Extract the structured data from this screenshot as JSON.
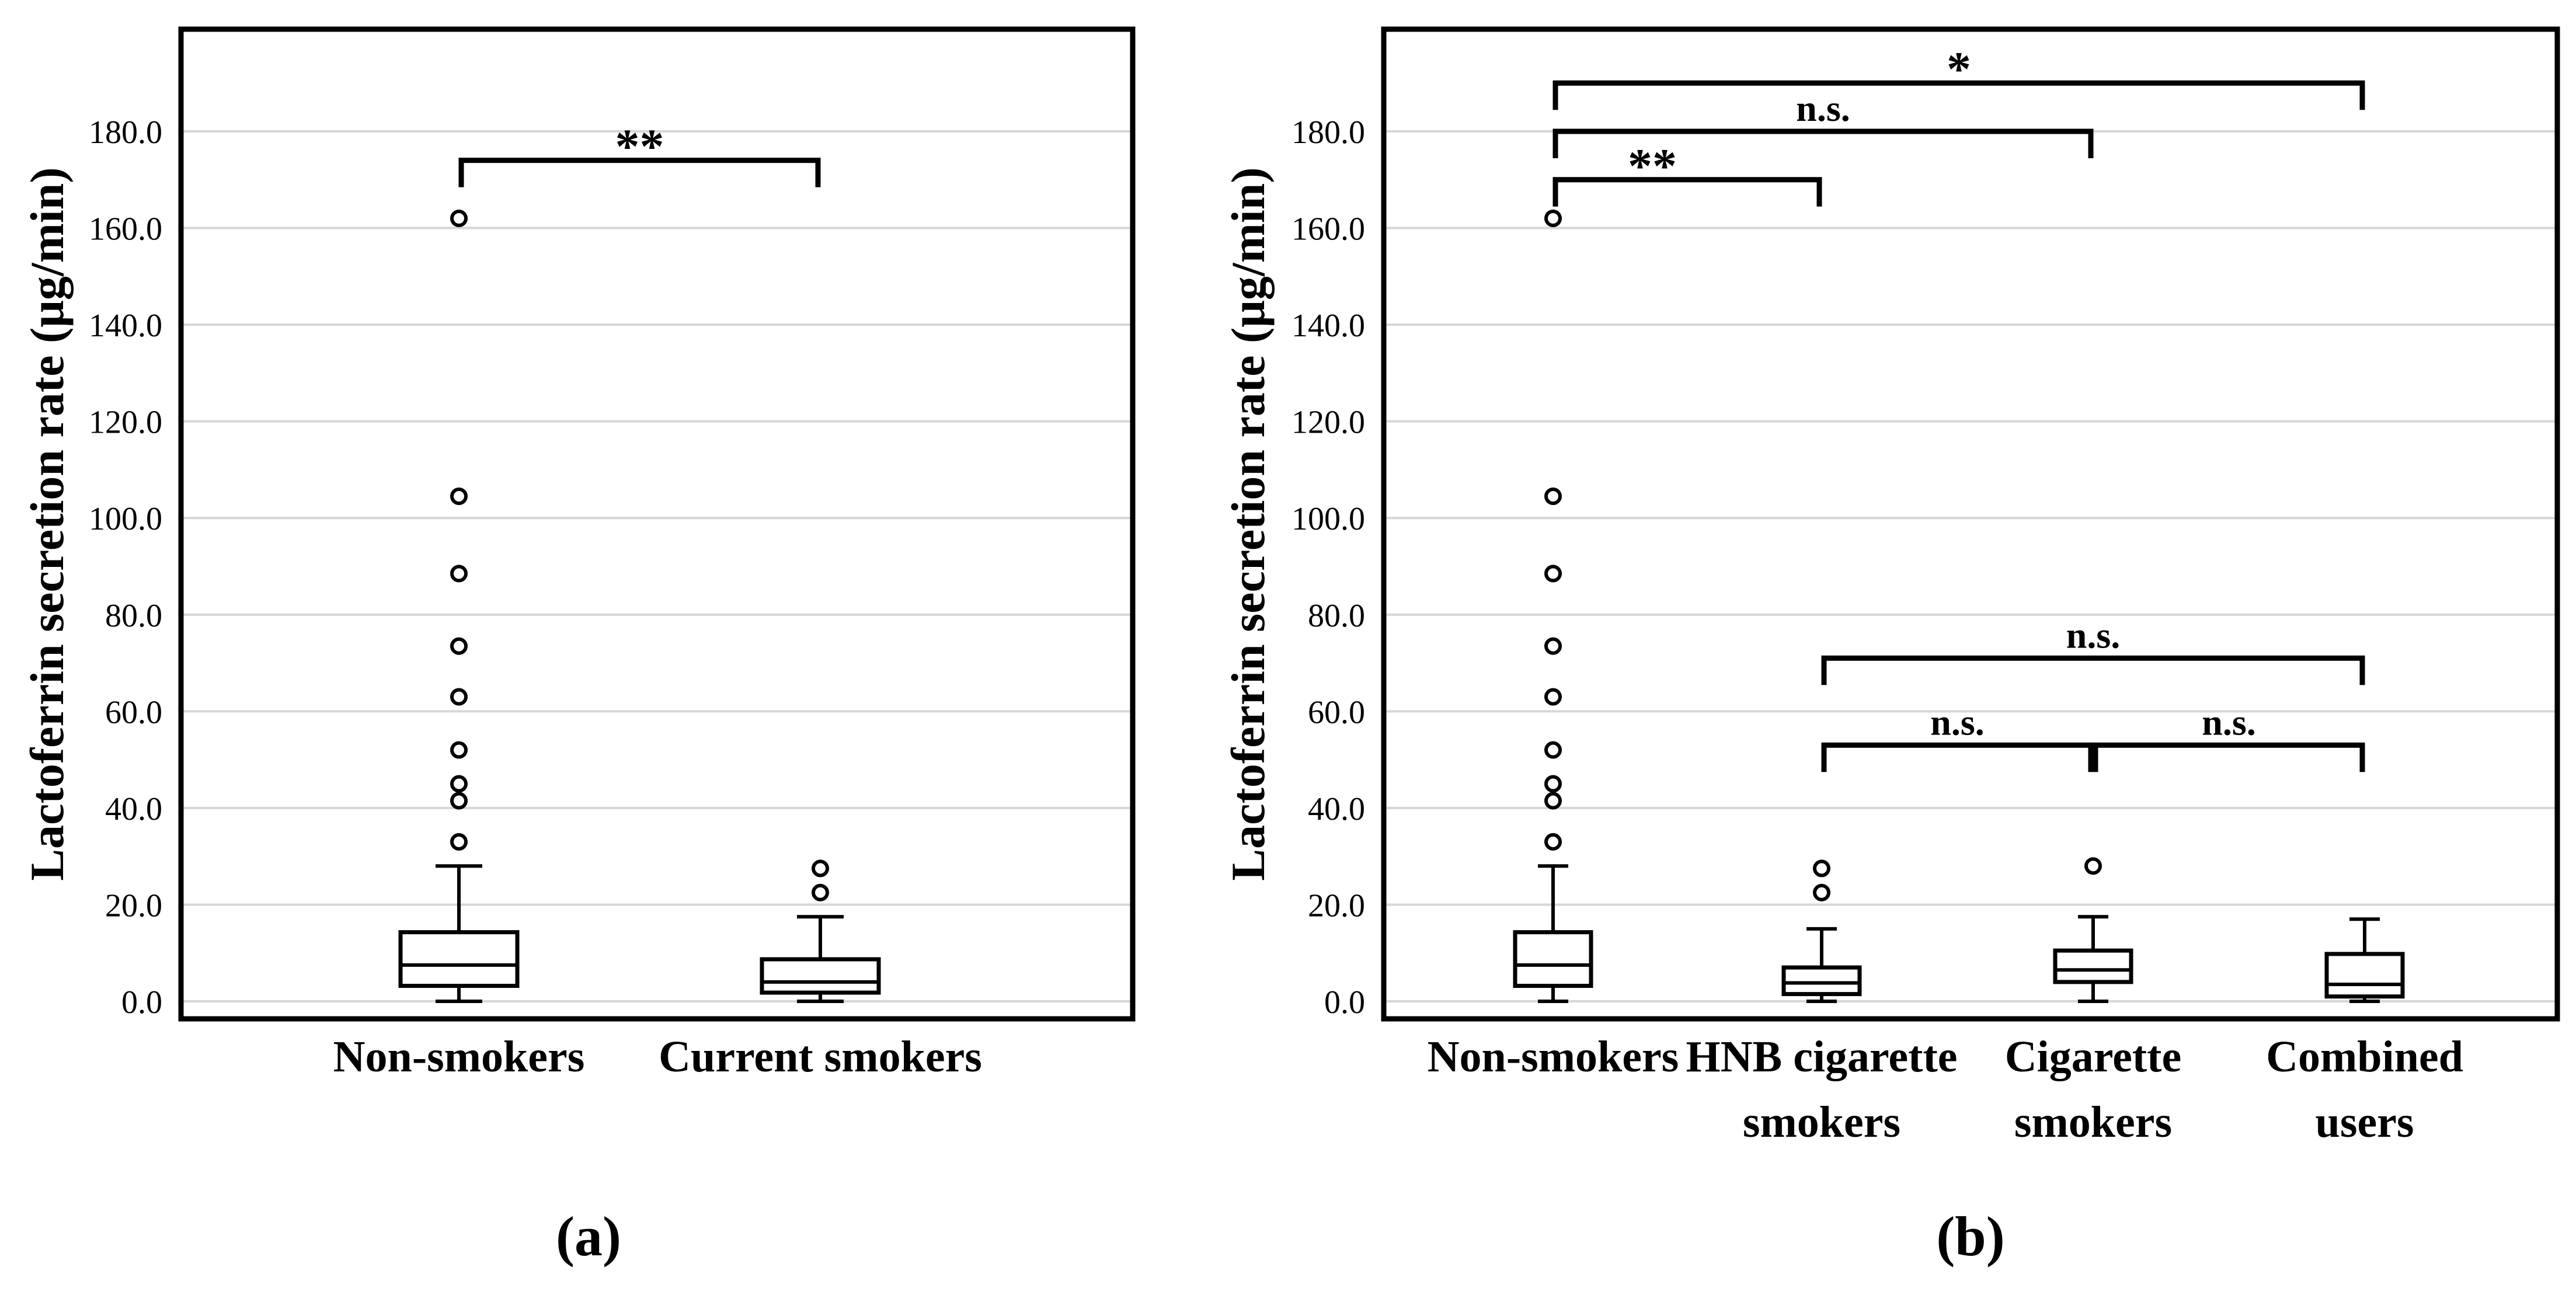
{
  "chart_data": [
    {
      "type": "box",
      "panel_label": "(a)",
      "ylabel": "Lactoferrin secretion rate (μg/min)",
      "ylim": [
        0,
        190
      ],
      "yticks": [
        "0.0",
        "20.0",
        "40.0",
        "60.0",
        "80.0",
        "100.0",
        "120.0",
        "140.0",
        "160.0",
        "180.0"
      ],
      "grid": true,
      "categories": [
        [
          "Non-smokers"
        ],
        [
          "Current smokers"
        ]
      ],
      "boxes": [
        {
          "min": 0.0,
          "q1": 3.2,
          "median": 7.5,
          "q3": 14.3,
          "whisker_high": 28.0,
          "outliers": [
            33.0,
            41.5,
            45.0,
            52.0,
            63.0,
            73.5,
            88.5,
            104.5,
            162.0
          ]
        },
        {
          "min": 0.0,
          "q1": 1.8,
          "median": 4.0,
          "q3": 8.7,
          "whisker_high": 17.5,
          "outliers": [
            22.5,
            27.5
          ]
        }
      ],
      "significance": [
        {
          "from": 0,
          "to": 1,
          "label": "**",
          "level": 174
        }
      ]
    },
    {
      "type": "box",
      "panel_label": "(b)",
      "ylabel": "Lactoferrin secretion rate (μg/min)",
      "ylim": [
        0,
        190
      ],
      "yticks": [
        "0.0",
        "20.0",
        "40.0",
        "60.0",
        "80.0",
        "100.0",
        "120.0",
        "140.0",
        "160.0",
        "180.0"
      ],
      "grid": true,
      "categories": [
        [
          "Non-smokers"
        ],
        [
          "HNB cigarette",
          "smokers"
        ],
        [
          "Cigarette",
          "smokers"
        ],
        [
          "Combined",
          "users"
        ]
      ],
      "boxes": [
        {
          "min": 0.0,
          "q1": 3.2,
          "median": 7.5,
          "q3": 14.3,
          "whisker_high": 28.0,
          "outliers": [
            33.0,
            41.5,
            45.0,
            52.0,
            63.0,
            73.5,
            88.5,
            104.5,
            162.0
          ]
        },
        {
          "min": 0.0,
          "q1": 1.5,
          "median": 3.8,
          "q3": 7.0,
          "whisker_high": 15.0,
          "outliers": [
            22.5,
            27.5
          ]
        },
        {
          "min": 0.0,
          "q1": 4.0,
          "median": 6.5,
          "q3": 10.5,
          "whisker_high": 17.5,
          "outliers": [
            28.0
          ]
        },
        {
          "min": 0.0,
          "q1": 1.0,
          "median": 3.5,
          "q3": 9.8,
          "whisker_high": 17.0,
          "outliers": []
        }
      ],
      "significance": [
        {
          "from": 0,
          "to": 3,
          "label": "*",
          "level": 190
        },
        {
          "from": 0,
          "to": 2,
          "label": "n.s.",
          "level": 180
        },
        {
          "from": 0,
          "to": 1,
          "label": "**",
          "level": 170
        },
        {
          "from": 1,
          "to": 3,
          "label": "n.s.",
          "level": 71
        },
        {
          "from": 1,
          "to": 2,
          "label": "n.s.",
          "level": 53
        },
        {
          "from": 2,
          "to": 3,
          "label": "n.s.",
          "level": 53
        }
      ]
    }
  ]
}
